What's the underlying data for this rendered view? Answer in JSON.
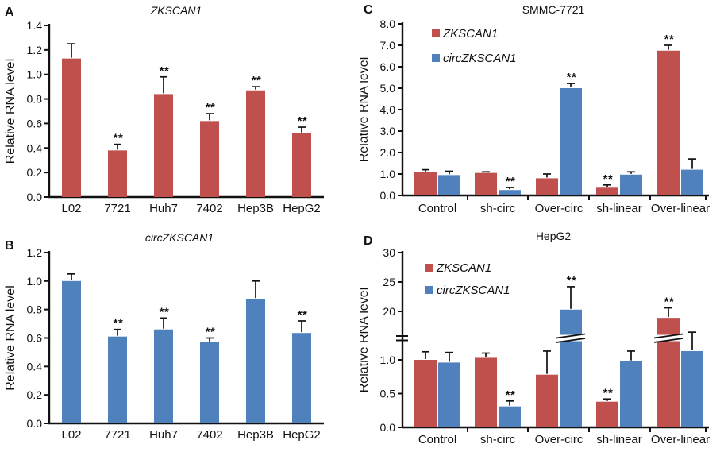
{
  "figure": {
    "background": "#ffffff",
    "axis_color": "#111111",
    "sig_marker": "**",
    "series_colors": {
      "ZKSCAN1": "#C0504D",
      "circZKSCAN1": "#4F81BD"
    }
  },
  "chart_data": [
    {
      "panel": "A",
      "type": "bar",
      "title": "ZKSCAN1",
      "title_style": "italic",
      "ylabel": "Relative RNA level",
      "ylim": [
        0,
        1.4
      ],
      "yticks": [
        "0.0",
        "0.2",
        "0.4",
        "0.6",
        "0.8",
        "1.0",
        "1.2",
        "1.4"
      ],
      "categories": [
        "L02",
        "7721",
        "Huh7",
        "7402",
        "Hep3B",
        "HepG2"
      ],
      "bar_color": "#C0504D",
      "values": [
        1.13,
        0.38,
        0.84,
        0.62,
        0.87,
        0.52
      ],
      "errors": [
        0.12,
        0.05,
        0.14,
        0.06,
        0.03,
        0.05
      ],
      "sig": [
        "",
        "**",
        "**",
        "**",
        "**",
        "**"
      ]
    },
    {
      "panel": "B",
      "type": "bar",
      "title": "circZKSCAN1",
      "title_style": "italic",
      "ylabel": "Relative RNA level",
      "ylim": [
        0,
        1.2
      ],
      "yticks": [
        "0.0",
        "0.2",
        "0.4",
        "0.6",
        "0.8",
        "1.0",
        "1.2"
      ],
      "categories": [
        "L02",
        "7721",
        "Huh7",
        "7402",
        "Hep3B",
        "HepG2"
      ],
      "bar_color": "#4F81BD",
      "values": [
        1.0,
        0.61,
        0.66,
        0.57,
        0.875,
        0.635
      ],
      "errors": [
        0.05,
        0.05,
        0.08,
        0.03,
        0.125,
        0.085
      ],
      "sig": [
        "",
        "**",
        "**",
        "**",
        "",
        "**"
      ]
    },
    {
      "panel": "C",
      "type": "grouped-bar",
      "title": "SMMC-7721",
      "title_style": "normal",
      "ylabel": "Relative RNA level",
      "ylim": [
        0,
        8
      ],
      "yticks": [
        "0.0",
        "1.0",
        "2.0",
        "3.0",
        "4.0",
        "5.0",
        "6.0",
        "7.0",
        "8.0"
      ],
      "categories": [
        "Control",
        "sh-circ",
        "Over-circ",
        "sh-linear",
        "Over-linear"
      ],
      "series": [
        {
          "name": "ZKSCAN1",
          "color": "#C0504D",
          "values": [
            1.08,
            1.05,
            0.8,
            0.36,
            6.75
          ],
          "errors": [
            0.12,
            0.05,
            0.2,
            0.13,
            0.25
          ],
          "sig": [
            "",
            "",
            "",
            "**",
            "**"
          ]
        },
        {
          "name": "circZKSCAN1",
          "color": "#4F81BD",
          "values": [
            0.95,
            0.25,
            5.0,
            0.97,
            1.2
          ],
          "errors": [
            0.18,
            0.12,
            0.22,
            0.13,
            0.5
          ],
          "sig": [
            "",
            "**",
            "**",
            "",
            ""
          ]
        }
      ]
    },
    {
      "panel": "D",
      "type": "grouped-bar-broken-axis",
      "title": "HepG2",
      "title_style": "normal",
      "ylabel": "Relative RNA level",
      "axis_break": {
        "lower_range": [
          0,
          1.4
        ],
        "upper_range": [
          15,
          30
        ]
      },
      "yticks_lower": [
        "0.0",
        "0.5",
        "1.0"
      ],
      "yticks_upper": [
        "20",
        "25",
        "30"
      ],
      "categories": [
        "Control",
        "sh-circ",
        "Over-circ",
        "sh-linear",
        "Over-linear"
      ],
      "series": [
        {
          "name": "ZKSCAN1",
          "color": "#C0504D",
          "values": [
            1.0,
            1.03,
            0.78,
            0.38,
            18.9
          ],
          "errors": [
            0.12,
            0.07,
            0.35,
            0.04,
            1.7
          ],
          "sig": [
            "",
            "",
            "",
            "**",
            "**"
          ]
        },
        {
          "name": "circZKSCAN1",
          "color": "#4F81BD",
          "values": [
            0.96,
            0.31,
            20.3,
            0.98,
            1.13
          ],
          "errors": [
            0.15,
            0.08,
            3.9,
            0.15,
            0.28
          ],
          "sig": [
            "",
            "**",
            "**",
            "",
            ""
          ]
        }
      ]
    }
  ]
}
